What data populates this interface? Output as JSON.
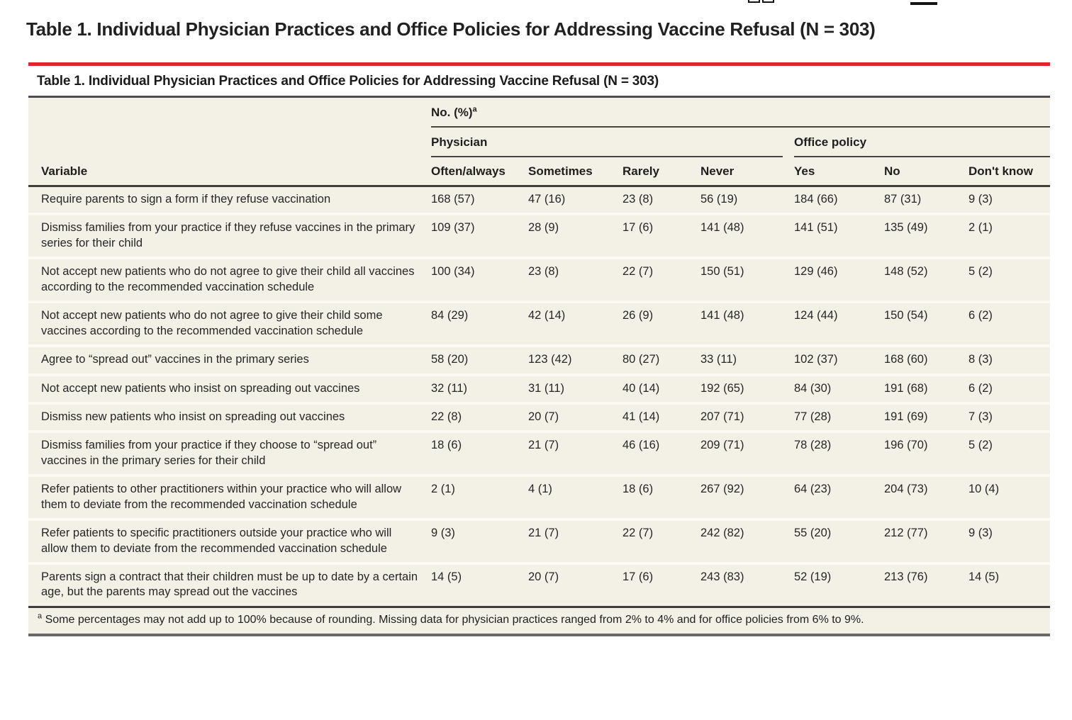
{
  "colors": {
    "accent_red": "#e0262d",
    "panel_bg": "#f3f1e6",
    "rule_dark": "#3e3e3e"
  },
  "page": {
    "title": "Table 1.  Individual Physician Practices and Office Policies for Addressing Vaccine Refusal (N = 303)"
  },
  "toolbar": {
    "pages_icon": "pages-icon",
    "minus_icon": "minus-icon"
  },
  "table": {
    "title": "Table 1. Individual Physician Practices and Office Policies for Addressing Vaccine Refusal (N = 303)",
    "header": {
      "group_top": "No. (%)",
      "group_top_sup": "a",
      "group_physician": "Physician",
      "group_office": "Office policy",
      "variable_label": "Variable",
      "physician_columns": [
        "Often/always",
        "Sometimes",
        "Rarely",
        "Never"
      ],
      "office_columns": [
        "Yes",
        "No",
        "Don't know"
      ]
    },
    "rows": [
      {
        "variable": "Require parents to sign a form if they refuse vaccination",
        "values": [
          "168 (57)",
          "47 (16)",
          "23 (8)",
          "56 (19)",
          "184 (66)",
          "87 (31)",
          "9 (3)"
        ]
      },
      {
        "variable": "Dismiss families from your practice if they refuse vaccines in the primary series for their child",
        "values": [
          "109 (37)",
          "28 (9)",
          "17 (6)",
          "141 (48)",
          "141 (51)",
          "135 (49)",
          "2 (1)"
        ]
      },
      {
        "variable": "Not accept new patients who do not agree to give their child all vaccines according to the recommended vaccination schedule",
        "values": [
          "100 (34)",
          "23 (8)",
          "22 (7)",
          "150 (51)",
          "129 (46)",
          "148 (52)",
          "5 (2)"
        ]
      },
      {
        "variable": "Not accept new patients who do not agree to give their child some vaccines according to the recommended vaccination schedule",
        "values": [
          "84 (29)",
          "42 (14)",
          "26 (9)",
          "141 (48)",
          "124 (44)",
          "150 (54)",
          "6 (2)"
        ]
      },
      {
        "variable": "Agree to “spread out” vaccines in the primary series",
        "values": [
          "58 (20)",
          "123 (42)",
          "80 (27)",
          "33 (11)",
          "102 (37)",
          "168 (60)",
          "8 (3)"
        ]
      },
      {
        "variable": "Not accept new patients who insist on spreading out vaccines",
        "values": [
          "32 (11)",
          "31 (11)",
          "40 (14)",
          "192 (65)",
          "84 (30)",
          "191 (68)",
          "6 (2)"
        ]
      },
      {
        "variable": "Dismiss new patients who insist on spreading out vaccines",
        "values": [
          "22 (8)",
          "20 (7)",
          "41 (14)",
          "207 (71)",
          "77 (28)",
          "191 (69)",
          "7 (3)"
        ]
      },
      {
        "variable": "Dismiss families from your practice if they choose to “spread out” vaccines in the primary series for their child",
        "values": [
          "18 (6)",
          "21 (7)",
          "46 (16)",
          "209 (71)",
          "78 (28)",
          "196 (70)",
          "5 (2)"
        ]
      },
      {
        "variable": "Refer patients to other practitioners within your practice who will allow them to deviate from the recommended vaccination schedule",
        "values": [
          "2 (1)",
          "4 (1)",
          "18 (6)",
          "267 (92)",
          "64 (23)",
          "204 (73)",
          "10 (4)"
        ]
      },
      {
        "variable": "Refer patients to specific practitioners outside your practice who will allow them to deviate from the recommended vaccination schedule",
        "values": [
          "9 (3)",
          "21 (7)",
          "22 (7)",
          "242 (82)",
          "55 (20)",
          "212 (77)",
          "9 (3)"
        ]
      },
      {
        "variable": "Parents sign a contract that their children must be up to date by a certain age, but the parents may spread out the vaccines",
        "values": [
          "14 (5)",
          "20 (7)",
          "17 (6)",
          "243 (83)",
          "52 (19)",
          "213 (76)",
          "14 (5)"
        ]
      }
    ],
    "footnote_sup": "a",
    "footnote_text": "Some percentages may not add up to 100% because of rounding. Missing data for physician practices ranged from 2% to 4% and for office policies from 6% to 9%."
  }
}
